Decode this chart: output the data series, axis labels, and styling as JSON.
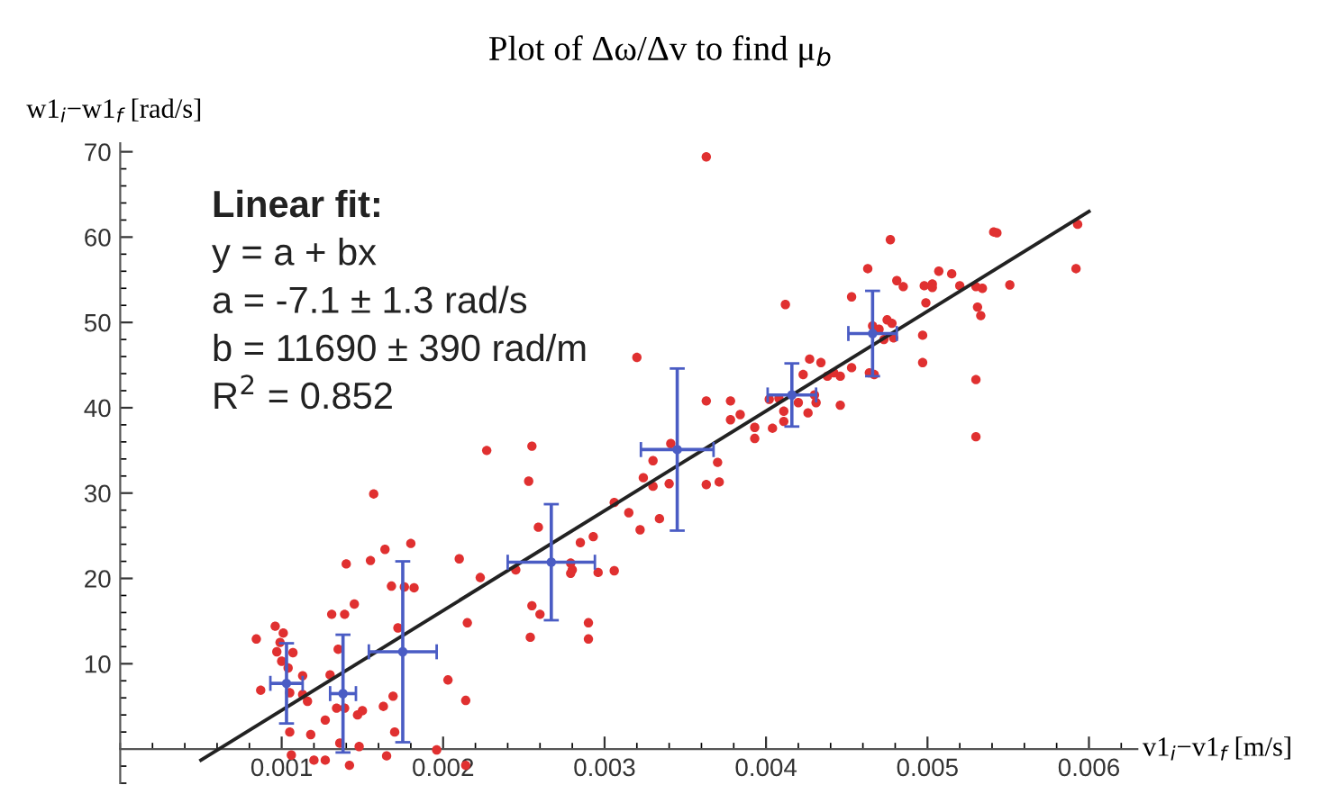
{
  "chart_data": {
    "type": "scatter",
    "title": "Plot of Δω/Δv to find μ$_{b}$",
    "xlabel": "v1$_{i}$−v1$_{f}$ [m/s]",
    "ylabel": "w1$_{i}$−w1$_{f}$ [rad/s]",
    "annotations": [
      "Linear fit:",
      "y = a + bx",
      "a = -7.1 ± 1.3 rad/s",
      "b = 11690 ± 390 rad/m",
      "R$^{2}$ = 0.852"
    ],
    "xlim": [
      0,
      0.0063
    ],
    "ylim": [
      -4,
      71
    ],
    "xticks": [
      0.001,
      0.002,
      0.003,
      0.004,
      0.005,
      0.006
    ],
    "yticks": [
      10,
      20,
      30,
      40,
      50,
      60,
      70
    ],
    "series": [
      {
        "marker": "circle",
        "color": "#e03030",
        "x": [
          0.000843,
          0.00087,
          0.00096,
          0.00101,
          0.00099,
          0.00097,
          0.00107,
          0.001,
          0.00104,
          0.00113,
          0.00105,
          0.00113,
          0.00116,
          0.00105,
          0.00106,
          0.00118,
          0.0012,
          0.00127,
          0.00127,
          0.0013,
          0.00131,
          0.00139,
          0.00135,
          0.0014,
          0.00134,
          0.00139,
          0.00136,
          0.00142,
          0.00145,
          0.00147,
          0.0015,
          0.00148,
          0.00155,
          0.00164,
          0.00168,
          0.00163,
          0.00169,
          0.0017,
          0.00165,
          0.00172,
          0.0018,
          0.00182,
          0.00203,
          0.00196,
          0.00214,
          0.00214,
          0.00215,
          0.0021,
          0.00223,
          0.00245,
          0.00254,
          0.00255,
          0.0026,
          0.00259,
          0.00157,
          0.00227,
          0.00255,
          0.00253,
          0.00176,
          0.00279,
          0.0028,
          0.00279,
          0.00285,
          0.00293,
          0.00296,
          0.00306,
          0.0029,
          0.0029,
          0.00306,
          0.00315,
          0.00322,
          0.0032,
          0.00324,
          0.0033,
          0.0033,
          0.00334,
          0.0034,
          0.00341,
          0.00363,
          0.0037,
          0.00363,
          0.00371,
          0.00378,
          0.00384,
          0.00378,
          0.00393,
          0.00393,
          0.00404,
          0.00412,
          0.00402,
          0.00408,
          0.00411,
          0.00411,
          0.0042,
          0.00423,
          0.00427,
          0.00426,
          0.0043,
          0.00431,
          0.00434,
          0.00438,
          0.00442,
          0.00446,
          0.00446,
          0.00453,
          0.00453,
          0.00463,
          0.00464,
          0.00466,
          0.00467,
          0.0047,
          0.00475,
          0.00478,
          0.00473,
          0.00477,
          0.00479,
          0.00481,
          0.00485,
          0.00497,
          0.00497,
          0.00499,
          0.00498,
          0.00503,
          0.00503,
          0.00507,
          0.00515,
          0.0052,
          0.0053,
          0.00534,
          0.00531,
          0.00533,
          0.0053,
          0.0053,
          0.00541,
          0.00543,
          0.00551,
          0.00593,
          0.00592,
          0.00363
        ],
        "values": [
          12.9,
          6.9,
          14.4,
          13.6,
          12.5,
          11.4,
          11.3,
          10.3,
          9.5,
          8.6,
          6.6,
          6.4,
          5.6,
          2.0,
          -0.7,
          1.7,
          -1.3,
          3.4,
          -1.3,
          8.7,
          15.8,
          15.8,
          11.7,
          21.7,
          4.8,
          4.8,
          0.7,
          -1.9,
          17.0,
          4.0,
          4.5,
          0.3,
          22.1,
          23.4,
          19.1,
          5.0,
          6.2,
          2.0,
          -0.8,
          14.2,
          24.1,
          18.9,
          8.1,
          -0.1,
          5.7,
          -1.9,
          14.8,
          22.3,
          20.1,
          21.0,
          13.1,
          16.8,
          15.8,
          26.0,
          29.9,
          35.0,
          35.5,
          31.4,
          19.0,
          21.8,
          21.0,
          20.6,
          24.2,
          24.9,
          20.7,
          20.9,
          14.8,
          12.9,
          28.9,
          27.7,
          25.7,
          45.9,
          31.8,
          33.8,
          30.8,
          27.0,
          31.1,
          35.8,
          40.8,
          33.6,
          31.0,
          31.3,
          40.8,
          39.2,
          38.6,
          37.7,
          36.4,
          37.6,
          52.1,
          41.0,
          41.1,
          39.6,
          38.4,
          40.6,
          43.9,
          45.7,
          39.4,
          41.5,
          40.6,
          45.3,
          43.7,
          44.1,
          43.7,
          40.3,
          44.7,
          53.0,
          56.3,
          44.1,
          49.6,
          43.9,
          49.2,
          50.3,
          49.9,
          48.0,
          59.7,
          48.2,
          54.9,
          54.2,
          48.5,
          45.3,
          52.3,
          54.3,
          54.5,
          54.1,
          56.0,
          55.7,
          54.3,
          54.2,
          54.0,
          51.8,
          50.8,
          43.3,
          36.6,
          60.6,
          60.5,
          54.4,
          61.5,
          56.3,
          69.4
        ]
      },
      {
        "type": "line",
        "marker": "none",
        "line_style": "solid",
        "color": "#222222",
        "x": [
          0.0005,
          0.006
        ],
        "values": [
          -1.3,
          63.0
        ]
      },
      {
        "marker": "circle",
        "color": "#4a5cc4",
        "x": [
          0.00103,
          0.00138,
          0.00175,
          0.00267,
          0.00345,
          0.00416,
          0.00466
        ],
        "values": [
          7.7,
          6.5,
          11.4,
          21.9,
          35.1,
          41.5,
          48.7
        ],
        "errors": [
          4.7,
          6.9,
          10.6,
          6.8,
          9.5,
          3.7,
          5.0
        ],
        "xerrors": [
          0.0001,
          8e-05,
          0.00021,
          0.00027,
          0.000225,
          0.00015,
          0.00015
        ]
      }
    ]
  }
}
